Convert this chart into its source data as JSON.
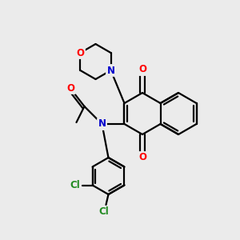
{
  "background_color": "#ebebeb",
  "bond_color": "#000000",
  "atom_colors": {
    "O": "#ff0000",
    "N": "#0000cc",
    "Cl": "#228b22",
    "C": "#000000"
  },
  "figsize": [
    3.0,
    3.0
  ],
  "dpi": 100,
  "bond_lw": 1.6,
  "font_size": 8.5
}
